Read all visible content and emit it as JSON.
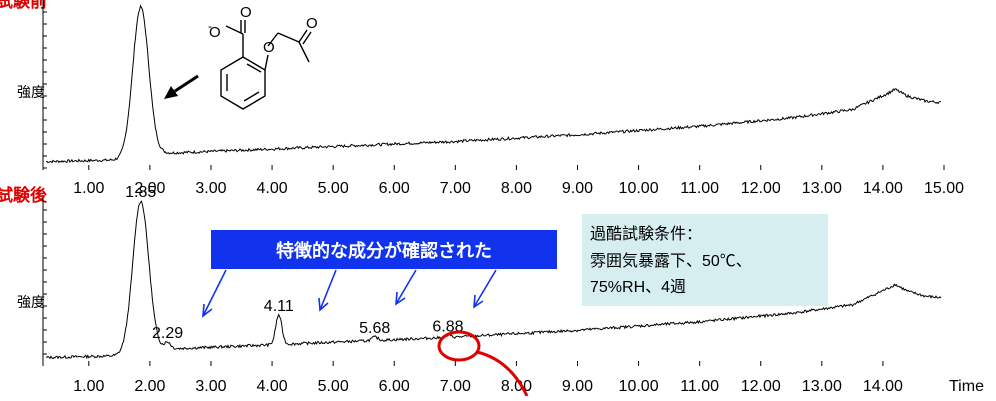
{
  "chart_data": [
    {
      "type": "line",
      "title": "試験前",
      "ylabel": "強度",
      "x_ticks": [
        "1.00",
        "2.00",
        "3.00",
        "4.00",
        "5.00",
        "6.00",
        "7.00",
        "8.00",
        "9.00",
        "10.00",
        "11.00",
        "12.00",
        "13.00",
        "14.00",
        "15.00"
      ],
      "xlim": [
        0.25,
        15.0
      ],
      "ylim": [
        0,
        100
      ],
      "peaks": [
        {
          "x": 1.85,
          "y": 97
        }
      ],
      "baseline_profile": {
        "x": [
          0.3,
          1.5,
          2.2,
          3.0,
          5.0,
          7.0,
          9.0,
          11.0,
          12.5,
          13.5,
          14.1,
          14.2,
          14.4,
          14.7,
          15.0
        ],
        "y": [
          5,
          6,
          10,
          11,
          14,
          17,
          21,
          26,
          31,
          36,
          46,
          48,
          44,
          41,
          40
        ]
      },
      "arrow_to_peak": true
    },
    {
      "type": "line",
      "title": "試験後",
      "ylabel": "強度",
      "xlabel": "Time",
      "x_ticks": [
        "1.00",
        "2.00",
        "3.00",
        "4.00",
        "5.00",
        "6.00",
        "7.00",
        "8.00",
        "9.00",
        "10.00",
        "11.00",
        "12.00",
        "13.00",
        "14.00"
      ],
      "xlim": [
        0.25,
        15.0
      ],
      "ylim": [
        0,
        100
      ],
      "peaks": [
        {
          "x": 1.85,
          "y": 97,
          "label": "1.85"
        },
        {
          "x": 2.29,
          "y": 14,
          "label": "2.29"
        },
        {
          "x": 4.11,
          "y": 30,
          "label": "4.11"
        },
        {
          "x": 5.68,
          "y": 17,
          "label": "5.68"
        },
        {
          "x": 6.88,
          "y": 18,
          "label": "6.88"
        }
      ],
      "baseline_profile": {
        "x": [
          0.3,
          1.5,
          2.2,
          3.0,
          5.0,
          7.0,
          9.0,
          11.0,
          12.5,
          13.5,
          14.1,
          14.2,
          14.4,
          14.7,
          15.0
        ],
        "y": [
          5,
          6,
          10,
          11,
          14,
          17,
          21,
          26,
          31,
          36,
          46,
          48,
          44,
          41,
          40
        ]
      },
      "highlight_circle_x": 6.88
    }
  ],
  "callout": {
    "text": "特徴的な成分が確認された",
    "color": "#1133ee"
  },
  "conditions": {
    "title": "過酷試験条件：",
    "line1": "雰囲気暴露下、50℃、",
    "line2": "75%RH、4週",
    "bg": "#d6eef0"
  },
  "structure_labels": {
    "o_minus": "O",
    "charge": "-",
    "o1": "O",
    "o2": "O",
    "o3": "O"
  },
  "colors": {
    "trace": "#000000",
    "title": "#e00000",
    "callout_arrow": "#1133ee",
    "highlight": "#e00000"
  }
}
